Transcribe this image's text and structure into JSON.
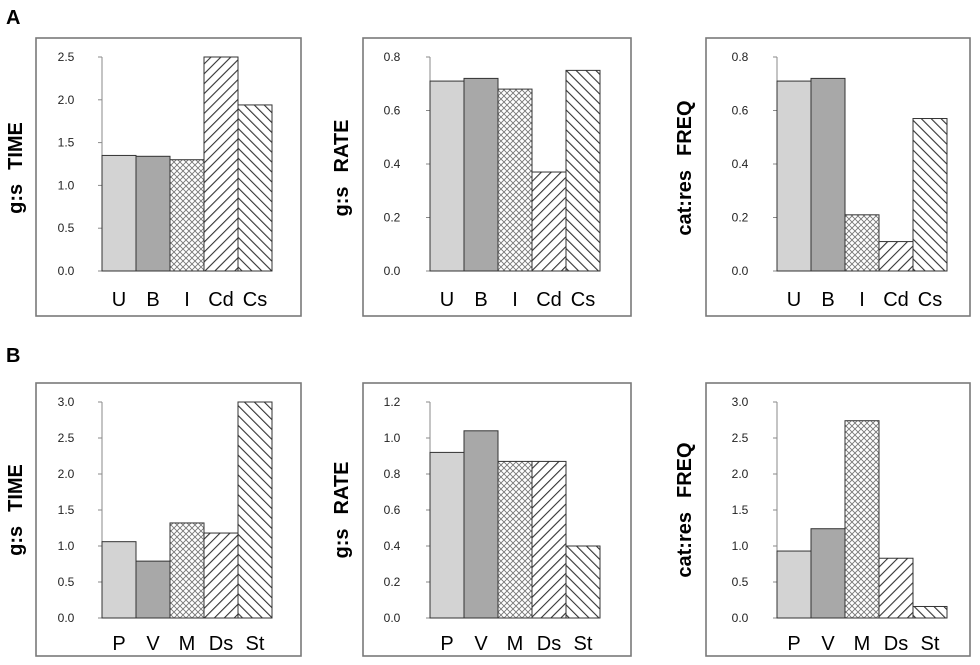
{
  "panel_labels": [
    "A",
    "B"
  ],
  "chart_data": [
    {
      "type": "bar",
      "row": "A",
      "col": 0,
      "ylabel_prefix": "g:s",
      "ylabel_measure": "TIME",
      "ylim": [
        0,
        2.5
      ],
      "yticks": [
        "0.0",
        "0.5",
        "1.0",
        "1.5",
        "2.0",
        "2.5"
      ],
      "categories": [
        "U",
        "B",
        "I",
        "Cd",
        "Cs"
      ],
      "values": [
        1.35,
        1.34,
        1.3,
        2.5,
        1.94
      ],
      "clipped": [
        false,
        false,
        false,
        true,
        false
      ]
    },
    {
      "type": "bar",
      "row": "A",
      "col": 1,
      "ylabel_prefix": "g:s",
      "ylabel_measure": "RATE",
      "ylim": [
        0,
        0.8
      ],
      "yticks": [
        "0.0",
        "0.2",
        "0.4",
        "0.6",
        "0.8"
      ],
      "categories": [
        "U",
        "B",
        "I",
        "Cd",
        "Cs"
      ],
      "values": [
        0.71,
        0.72,
        0.68,
        0.37,
        0.75
      ]
    },
    {
      "type": "bar",
      "row": "A",
      "col": 2,
      "ylabel_prefix": "cat:res",
      "ylabel_measure": "FREQ",
      "ylim": [
        0,
        0.8
      ],
      "yticks": [
        "0.0",
        "0.2",
        "0.4",
        "0.6",
        "0.8"
      ],
      "categories": [
        "U",
        "B",
        "I",
        "Cd",
        "Cs"
      ],
      "values": [
        0.71,
        0.72,
        0.21,
        0.11,
        0.57
      ]
    },
    {
      "type": "bar",
      "row": "B",
      "col": 0,
      "ylabel_prefix": "g:s",
      "ylabel_measure": "TIME",
      "ylim": [
        0,
        3.0
      ],
      "yticks": [
        "0.0",
        "0.5",
        "1.0",
        "1.5",
        "2.0",
        "2.5",
        "3.0"
      ],
      "categories": [
        "P",
        "V",
        "M",
        "Ds",
        "St"
      ],
      "values": [
        1.06,
        0.79,
        1.32,
        1.18,
        3.0
      ],
      "clipped": [
        false,
        false,
        false,
        false,
        true
      ]
    },
    {
      "type": "bar",
      "row": "B",
      "col": 1,
      "ylabel_prefix": "g:s",
      "ylabel_measure": "RATE",
      "ylim": [
        0,
        1.2
      ],
      "yticks": [
        "0.0",
        "0.2",
        "0.4",
        "0.6",
        "0.8",
        "1.0",
        "1.2"
      ],
      "categories": [
        "P",
        "V",
        "M",
        "Ds",
        "St"
      ],
      "values": [
        0.92,
        1.04,
        0.87,
        0.87,
        0.4
      ]
    },
    {
      "type": "bar",
      "row": "B",
      "col": 2,
      "ylabel_prefix": "cat:res",
      "ylabel_measure": "FREQ",
      "ylim": [
        0,
        3.0
      ],
      "yticks": [
        "0.0",
        "0.5",
        "1.0",
        "1.5",
        "2.0",
        "2.5",
        "3.0"
      ],
      "categories": [
        "P",
        "V",
        "M",
        "Ds",
        "St"
      ],
      "values": [
        0.93,
        1.24,
        2.74,
        0.83,
        0.16
      ]
    }
  ],
  "bar_styles": {
    "fills": [
      "#d3d3d3",
      "#a8a8a8",
      "pattern:crosshatch",
      "pattern:hatch-down",
      "pattern:hatch-up"
    ],
    "stroke": "#333333",
    "frame": "#7a7a7a"
  }
}
